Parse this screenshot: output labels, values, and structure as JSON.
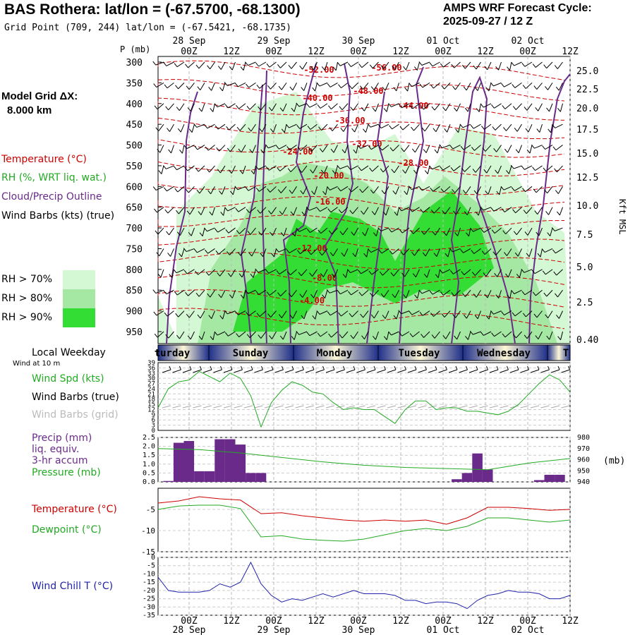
{
  "header": {
    "title": "BAS Rothera:  lat/lon = (-67.5700, -68.1300)",
    "grid_point": "Grid Point (709, 244) lat/lon = (-67.5421, -68.1735)",
    "forecast_label": "AMPS WRF Forecast Cycle:",
    "forecast_cycle": "2025-09-27 / 12  Z"
  },
  "side": {
    "model_grid_label": "Model Grid ΔX:",
    "model_grid_value": "8.000 km",
    "p_label": "P (mb)",
    "kft_label": "Kft MSL",
    "local_weekday": "Local Weekday",
    "wind_at_10m": "Wind at 10 m",
    "pressure_unit": "(mb)"
  },
  "legend_top": [
    {
      "text": "Temperature (°C)",
      "color": "#cc0000"
    },
    {
      "text": "RH (%, WRT liq. wat.)",
      "color": "#22aa22"
    },
    {
      "text": "Cloud/Precip Outline",
      "color": "#6a2a8a"
    },
    {
      "text": "Wind Barbs (kts) (true)",
      "color": "#000000"
    }
  ],
  "rh_legend": [
    {
      "text": "RH > 70%",
      "color": "#d4f7d4"
    },
    {
      "text": "RH > 80%",
      "color": "#a4e8a4"
    },
    {
      "text": "RH > 90%",
      "color": "#33dd33"
    }
  ],
  "panel_labels": {
    "wind_spd": "Wind Spd (kts)",
    "wind_barbs_true": "Wind Barbs (true)",
    "wind_barbs_grid": "Wind Barbs (grid)",
    "precip": "Precip (mm)",
    "liq_equiv": "liq. equiv.",
    "accum": "3-hr accum",
    "pressure": "Pressure (mb)",
    "temperature": "Temperature (°C)",
    "dewpoint": "Dewpoint (°C)",
    "wind_chill": "Wind Chill T (°C)"
  },
  "colors": {
    "temperature": "#cc0000",
    "rh": "#22aa22",
    "cloud": "#6a2a8a",
    "wind": "#22aa22",
    "precip": "#6a2a8a",
    "pressure": "#22aa22",
    "dewpoint": "#22aa22",
    "windchill": "#2222aa"
  },
  "chart_data": [
    {
      "type": "heatmap",
      "time_ticks": [
        "00Z",
        "12Z",
        "00Z",
        "12Z",
        "00Z",
        "12Z",
        "00Z",
        "12Z",
        "00Z",
        "12Z"
      ],
      "date_labels": [
        "28 Sep",
        "29 Sep",
        "30 Sep",
        "01 Oct",
        "02 Oct"
      ],
      "pressure_levels": [
        300,
        350,
        400,
        450,
        500,
        550,
        600,
        650,
        700,
        750,
        800,
        850,
        900,
        950
      ],
      "kft_ticks": [
        "25.0",
        "22.5",
        "20.0",
        "17.5",
        "15.0",
        "12.5",
        "10.0",
        "7.5",
        "5.0",
        "2.5",
        "0.40"
      ],
      "temperature_labels": [
        "-52.00",
        "-56.00",
        "-48.00",
        "-40.00",
        "-44.00",
        "-36.00",
        "-32.00",
        "-24.00",
        "-28.00",
        "-20.00",
        "-16.00",
        "-12.00",
        "-8.00",
        "-4.00"
      ],
      "weekdays": [
        "turday",
        "Sunday",
        "Monday",
        "Tuesday",
        "Wednesday",
        "T"
      ]
    },
    {
      "type": "line",
      "title": "Wind Spd (kts)",
      "y_ticks": [
        39,
        36,
        33,
        30,
        27,
        24,
        21,
        18,
        15,
        12,
        9,
        6,
        3,
        0
      ],
      "ylim": [
        0,
        39
      ],
      "hours": [
        0,
        3,
        6,
        9,
        12,
        15,
        18,
        21,
        24,
        27,
        30,
        33,
        36,
        39,
        42,
        45,
        48,
        51,
        54,
        57,
        60,
        63,
        66,
        69,
        72,
        75,
        78,
        81,
        84,
        87,
        90,
        93,
        96,
        99,
        102,
        105,
        108,
        111,
        114,
        117,
        120
      ],
      "values": [
        13,
        24,
        28,
        29,
        34,
        31,
        28,
        33,
        30,
        20,
        2,
        16,
        23,
        28,
        26,
        22,
        21,
        16,
        12,
        13,
        12,
        12,
        8,
        4,
        12,
        17,
        17,
        12,
        13,
        13,
        11,
        11,
        10,
        9,
        11,
        15,
        21,
        27,
        32,
        29,
        22
      ]
    },
    {
      "type": "bar",
      "title": "Precip (mm) / Pressure (mb)",
      "precip_ticks": [
        "2.5",
        "2.0",
        "1.5",
        "1.0",
        "0.5",
        "0.0"
      ],
      "pressure_ticks": [
        980,
        970,
        960,
        950,
        940
      ],
      "ylim_precip": [
        0,
        2.5
      ],
      "ylim_pressure": [
        940,
        980
      ],
      "hours": [
        3,
        6,
        9,
        12,
        15,
        18,
        21,
        24,
        27,
        30,
        33,
        87,
        90,
        93,
        96,
        99,
        111,
        114,
        117
      ],
      "precip_values": [
        0.05,
        2.2,
        2.3,
        0.6,
        0.6,
        2.4,
        2.4,
        2.1,
        0.5,
        0.5,
        0.0,
        0.15,
        0.5,
        1.6,
        0.7,
        0.0,
        0.1,
        0.4,
        0.4
      ],
      "pressure_hours": [
        0,
        12,
        24,
        36,
        48,
        60,
        72,
        84,
        96,
        108,
        120
      ],
      "pressure_values": [
        970,
        969,
        966,
        962,
        958,
        955,
        953,
        952,
        951,
        957,
        961
      ]
    },
    {
      "type": "line",
      "title": "Temperature (°C) / Dewpoint (°C)",
      "y_ticks": [
        "-5",
        "-10",
        "-15"
      ],
      "ylim": [
        -15,
        0
      ],
      "hours": [
        0,
        6,
        12,
        18,
        24,
        30,
        36,
        42,
        48,
        54,
        60,
        66,
        72,
        78,
        84,
        90,
        96,
        102,
        108,
        114,
        120
      ],
      "temperature": [
        -3.5,
        -3.0,
        -2.0,
        -2.5,
        -2.8,
        -6.0,
        -5.8,
        -6.5,
        -7.0,
        -7.5,
        -7.8,
        -7.5,
        -7.8,
        -7.5,
        -8.5,
        -7.0,
        -4.5,
        -4.5,
        -4.8,
        -5.2,
        -5.0
      ],
      "dewpoint": [
        -5.0,
        -4.2,
        -4.0,
        -4.0,
        -4.8,
        -11.5,
        -11.2,
        -12.0,
        -12.3,
        -12.5,
        -12.0,
        -11.0,
        -10.0,
        -9.5,
        -10.0,
        -9.0,
        -7.0,
        -7.0,
        -7.5,
        -8.0,
        -7.5
      ]
    },
    {
      "type": "line",
      "title": "Wind Chill T (°C)",
      "y_ticks": [
        0,
        -5,
        -10,
        -15,
        -20,
        -25,
        -30,
        -35
      ],
      "ylim": [
        -35,
        0
      ],
      "hours": [
        0,
        3,
        6,
        9,
        12,
        15,
        18,
        21,
        24,
        27,
        30,
        33,
        36,
        39,
        42,
        45,
        48,
        51,
        54,
        57,
        60,
        63,
        66,
        69,
        72,
        75,
        78,
        81,
        84,
        87,
        90,
        93,
        96,
        99,
        102,
        105,
        108,
        111,
        114,
        117,
        120
      ],
      "values": [
        -12,
        -20,
        -21,
        -21,
        -21,
        -20,
        -16,
        -18,
        -15,
        -3,
        -16,
        -23,
        -27,
        -25,
        -26,
        -24,
        -22,
        -24,
        -22,
        -20,
        -22,
        -22,
        -22,
        -23,
        -26,
        -26,
        -28,
        -27,
        -27,
        -28,
        -31,
        -26,
        -23,
        -22,
        -20,
        -21,
        -21,
        -22,
        -25,
        -25,
        -23
      ],
      "x_ticks": [
        "00Z",
        "12Z",
        "00Z",
        "12Z",
        "00Z",
        "12Z",
        "00Z",
        "12Z",
        "00Z",
        "12Z"
      ],
      "date_labels": [
        "28 Sep",
        "29 Sep",
        "30 Sep",
        "01 Oct",
        "02 Oct"
      ]
    }
  ]
}
